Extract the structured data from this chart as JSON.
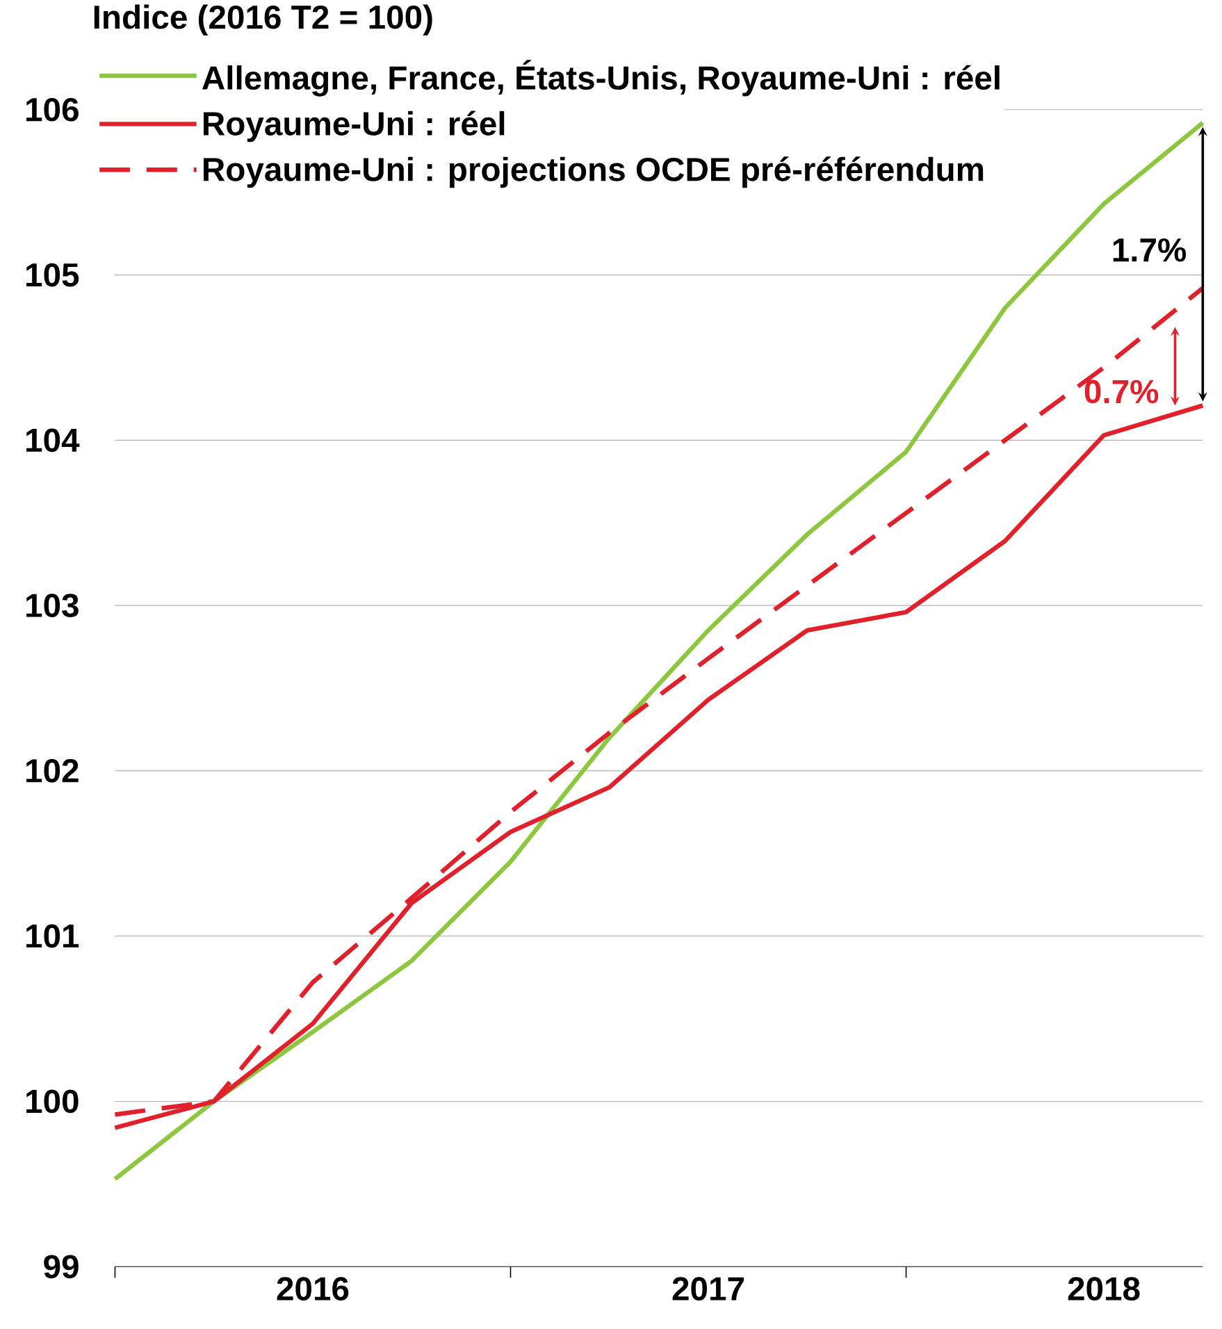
{
  "chart_data": {
    "type": "line",
    "ylabel": "Indice (2016 T2 = 100)",
    "x": [
      2016,
      2016.25,
      2016.5,
      2016.75,
      2017,
      2017.25,
      2017.5,
      2017.75,
      2018,
      2018.25,
      2018.5,
      2018.75
    ],
    "series": [
      {
        "name": "Allemagne, France, États-Unis, Royaume-Uni : réel",
        "color": "#8dc63f",
        "line_style": "solid",
        "values": [
          99.53,
          100,
          100.42,
          100.85,
          101.45,
          102.2,
          102.85,
          103.43,
          103.93,
          104.8,
          105.43,
          105.92
        ]
      },
      {
        "name": "Royaume-Uni  : réel",
        "color": "#e0202a",
        "line_style": "solid",
        "values": [
          99.84,
          100,
          100.47,
          101.2,
          101.63,
          101.9,
          102.43,
          102.85,
          102.96,
          103.39,
          104.03,
          104.21
        ]
      },
      {
        "name": "Royaume-Uni : projections OCDE pré-référendum",
        "color": "#e0202a",
        "line_style": "dashed",
        "values": [
          99.92,
          100,
          100.72,
          101.23,
          101.75,
          102.23,
          102.68,
          103.12,
          103.56,
          104.0,
          104.44,
          104.92
        ]
      }
    ],
    "xlim": [
      2016,
      2018.75
    ],
    "xticks": [
      {
        "value": 2016,
        "label": null
      },
      {
        "value": 2016.5,
        "label": "2016"
      },
      {
        "value": 2017,
        "label": null
      },
      {
        "value": 2017.5,
        "label": "2017"
      },
      {
        "value": 2018,
        "label": null
      },
      {
        "value": 2018.5,
        "label": "2018"
      }
    ],
    "ylim": [
      99,
      106
    ],
    "yticks": [
      99,
      100,
      101,
      102,
      103,
      104,
      105,
      106
    ],
    "grid": "y",
    "legend": "top left",
    "annotations": [
      "1.7%",
      "0.7%"
    ]
  }
}
